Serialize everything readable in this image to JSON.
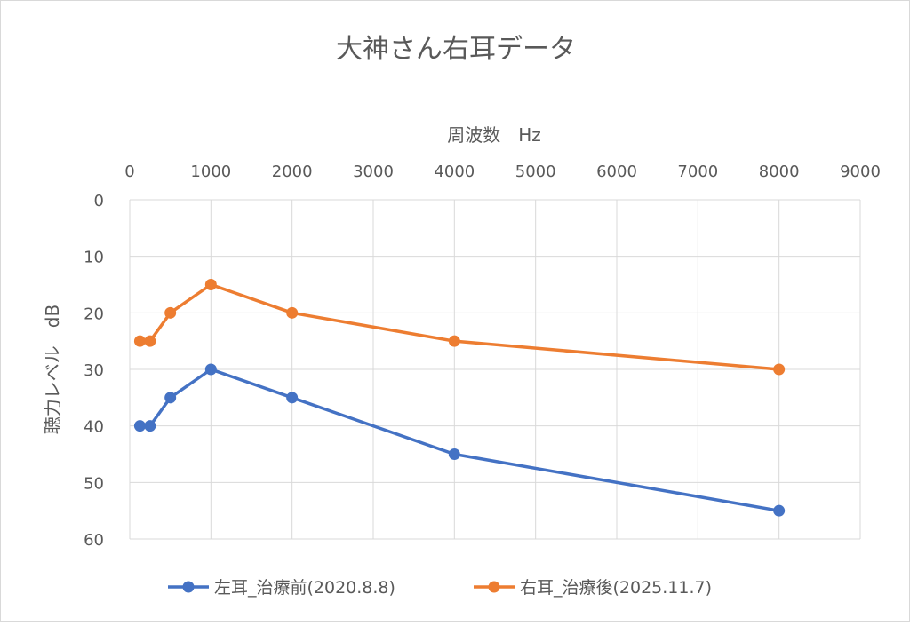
{
  "chart_data": {
    "type": "line",
    "title": "大神さん右耳データ",
    "xlabel": "周波数　Hz",
    "ylabel": "聴力レベル　dB",
    "xlim": [
      0,
      9000
    ],
    "ylim": [
      0,
      60
    ],
    "y_reversed": true,
    "x_axis_position": "top",
    "grid": true,
    "x_ticks": [
      "0",
      "1000",
      "2000",
      "3000",
      "4000",
      "5000",
      "6000",
      "7000",
      "8000",
      "9000"
    ],
    "y_ticks": [
      "0",
      "10",
      "20",
      "30",
      "40",
      "50",
      "60"
    ],
    "x": [
      125,
      250,
      500,
      1000,
      2000,
      4000,
      8000
    ],
    "series": [
      {
        "name": "左耳_治療前(2020.8.8)",
        "color": "#4472c4",
        "values": [
          40,
          40,
          35,
          30,
          35,
          45,
          55
        ]
      },
      {
        "name": "右耳_治療後(2025.11.7)",
        "color": "#ed7d31",
        "values": [
          25,
          25,
          20,
          15,
          20,
          25,
          30
        ]
      }
    ],
    "legend_position": "bottom"
  }
}
